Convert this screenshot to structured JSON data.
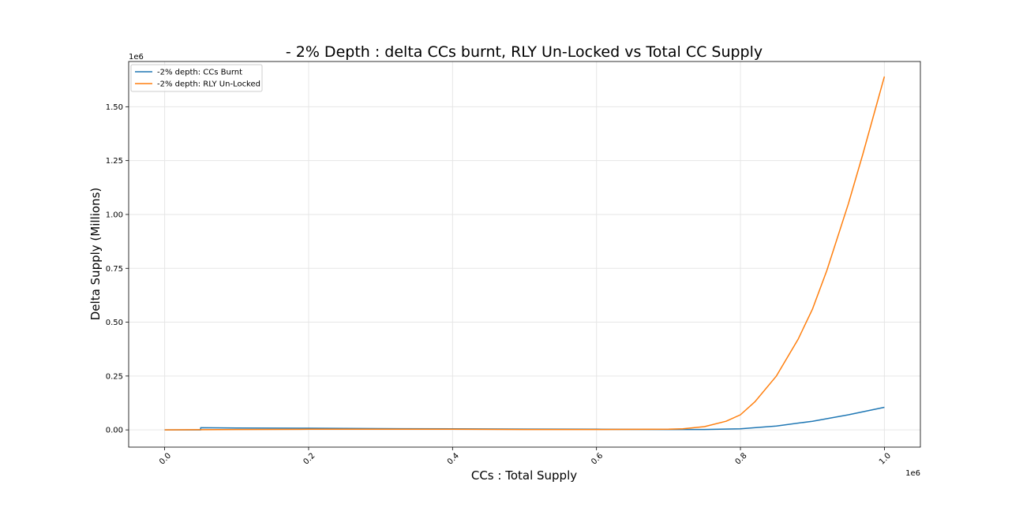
{
  "chart_data": {
    "type": "line",
    "title": "- 2% Depth : delta CCs burnt, RLY Un-Locked vs Total CC Supply",
    "xlabel": "CCs : Total Supply",
    "ylabel": "Delta Supply (Millions)",
    "x_offset_label": "1e6",
    "y_offset_label": "1e6",
    "xlim": [
      -0.05,
      1.05
    ],
    "ylim": [
      -0.08,
      1.71
    ],
    "x_ticks": [
      0.0,
      0.2,
      0.4,
      0.6,
      0.8,
      1.0
    ],
    "x_tick_labels": [
      "0.0",
      "0.2",
      "0.4",
      "0.6",
      "0.8",
      "1.0"
    ],
    "y_ticks": [
      0.0,
      0.25,
      0.5,
      0.75,
      1.0,
      1.25,
      1.5
    ],
    "y_tick_labels": [
      "0.00",
      "0.25",
      "0.50",
      "0.75",
      "1.00",
      "1.25",
      "1.50"
    ],
    "grid": true,
    "legend_position": "upper-left",
    "x_scale_note": "values in units of 1e6",
    "series": [
      {
        "name": "-2% depth: CCs Burnt",
        "color": "#1f77b4",
        "x": [
          0.0,
          0.05,
          0.05,
          0.1,
          0.2,
          0.3,
          0.4,
          0.5,
          0.6,
          0.7,
          0.75,
          0.8,
          0.85,
          0.9,
          0.95,
          1.0
        ],
        "y": [
          0.0,
          0.0,
          0.01,
          0.009,
          0.008,
          0.006,
          0.005,
          0.004,
          0.003,
          0.002,
          0.002,
          0.005,
          0.018,
          0.04,
          0.07,
          0.105
        ]
      },
      {
        "name": "-2% depth: RLY Un-Locked",
        "color": "#ff7f0e",
        "x": [
          0.0,
          0.1,
          0.2,
          0.3,
          0.4,
          0.5,
          0.6,
          0.7,
          0.72,
          0.75,
          0.78,
          0.8,
          0.82,
          0.85,
          0.88,
          0.9,
          0.92,
          0.95,
          0.97,
          1.0
        ],
        "y": [
          0.0,
          0.002,
          0.003,
          0.003,
          0.003,
          0.002,
          0.002,
          0.003,
          0.005,
          0.015,
          0.04,
          0.07,
          0.13,
          0.25,
          0.42,
          0.56,
          0.74,
          1.05,
          1.28,
          1.64
        ]
      }
    ]
  }
}
